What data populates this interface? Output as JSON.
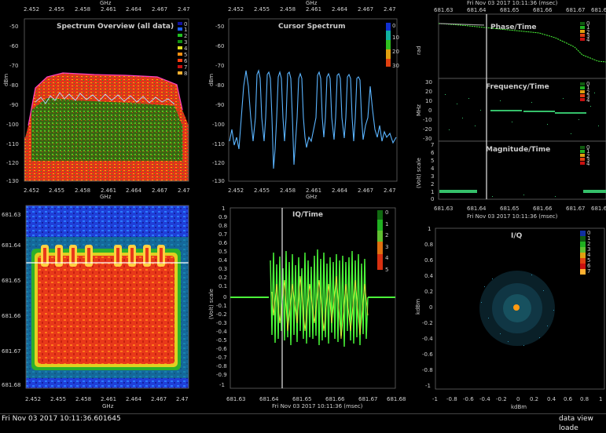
{
  "status": {
    "timestamp": "Fri Nov 03 2017 10:11:36.601645",
    "message": "data view loade"
  },
  "colors": {
    "trace": "#5ab4ff",
    "cursor": "#d8d8d8",
    "iq_green": "#4cff3a",
    "iq_yellow": "#e8e83c"
  },
  "panels": {
    "spectrum_overview": {
      "title": "Spectrum Overview (all data)",
      "top_axis_unit": "GHz",
      "bottom_axis_unit": "GHz",
      "y_unit": "dBm",
      "x_ticks": [
        "2.452",
        "2.455",
        "2.458",
        "2.461",
        "2.464",
        "2.467",
        "2.47"
      ],
      "y_ticks": [
        "-50",
        "-60",
        "-70",
        "-80",
        "-90",
        "-100",
        "-110",
        "-120",
        "-130"
      ],
      "legend": [
        "0",
        "1",
        "2",
        "3",
        "4",
        "5",
        "6",
        "7",
        "8"
      ]
    },
    "cursor_spectrum": {
      "title": "Cursor Spectrum",
      "top_axis_unit": "GHz",
      "bottom_axis_unit": "GHz",
      "y_unit": "dBm",
      "x_ticks": [
        "2.452",
        "2.455",
        "2.458",
        "2.461",
        "2.464",
        "2.467",
        "2.47"
      ],
      "y_ticks": [
        "-50",
        "-60",
        "-70",
        "-80",
        "-90",
        "-100",
        "-110",
        "-120",
        "-130"
      ],
      "legend": [
        "0",
        "10",
        "20",
        "30"
      ]
    },
    "spectrogram": {
      "x_unit": "GHz",
      "x_ticks": [
        "2.452",
        "2.455",
        "2.458",
        "2.461",
        "2.464",
        "2.467",
        "2.47"
      ],
      "y_ticks": [
        "681.63",
        "681.64",
        "681.65",
        "681.66",
        "681.67",
        "681.68"
      ]
    },
    "iq_time": {
      "title": "IQ/Time",
      "y_unit": "(Volt) scale",
      "x_title": "Fri Nov 03 2017 10:11:36 (msec)",
      "x_ticks": [
        "681.63",
        "681.64",
        "681.65",
        "681.66",
        "681.67",
        "681.68"
      ],
      "y_ticks": [
        "1",
        "0.9",
        "0.8",
        "0.7",
        "0.6",
        "0.5",
        "0.4",
        "0.3",
        "0.2",
        "0.1",
        "0",
        "-0.1",
        "-0.2",
        "-0.3",
        "-0.4",
        "-0.5",
        "-0.6",
        "-0.7",
        "-0.8",
        "-0.9",
        "-1"
      ],
      "legend": [
        "0",
        "1",
        "2",
        "3",
        "4",
        "5"
      ]
    },
    "phase_time": {
      "title": "Phase/Time",
      "top_axis": "Fri Nov 03 2017 10:11:36 (msec)",
      "top_ticks": [
        "681.63",
        "681.64",
        "681.65",
        "681.66",
        "681.67",
        "681.68"
      ],
      "y_unit": "rad",
      "legend": [
        "0",
        "1",
        "2",
        "3",
        "4"
      ]
    },
    "frequency_time": {
      "title": "Frequency/Time",
      "y_unit": "MHz",
      "y_ticks": [
        "30",
        "20",
        "10",
        "0",
        "-10",
        "-20",
        "-30"
      ],
      "legend": [
        "0",
        "1",
        "2",
        "3",
        "4"
      ]
    },
    "magnitude_time": {
      "title": "Magnitude/Time",
      "y_unit": "(Volt) scale",
      "y_ticks": [
        "7",
        "6",
        "5",
        "4",
        "3",
        "2",
        "1",
        "0"
      ],
      "x_ticks": [
        "681.63",
        "681.64",
        "681.65",
        "681.66",
        "681.67",
        "681.68"
      ],
      "x_title": "Fri Nov 03 2017 10:11:36 (msec)",
      "legend": [
        "0",
        "1",
        "2",
        "3",
        "4"
      ]
    },
    "iq": {
      "title": "I/Q",
      "x_unit": "kdBm",
      "y_unit": "kdBm",
      "x_ticks": [
        "-1",
        "-0.8",
        "-0.6",
        "-0.4",
        "-0.2",
        "0",
        "0.2",
        "0.4",
        "0.6",
        "0.8",
        "1"
      ],
      "y_ticks": [
        "1",
        "0.8",
        "0.6",
        "0.4",
        "0.2",
        "0",
        "-0.2",
        "-0.4",
        "-0.6",
        "-0.8",
        "-1"
      ],
      "legend": [
        "0",
        "1",
        "2",
        "3",
        "4",
        "5",
        "6",
        "7"
      ]
    }
  }
}
